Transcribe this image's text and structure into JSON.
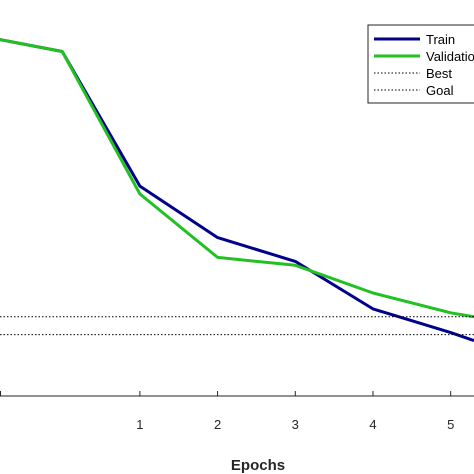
{
  "chart_data": {
    "type": "line",
    "xlabel": "Epochs",
    "ylabel": "",
    "title": "",
    "xlim": [
      -0.8,
      5.3
    ],
    "ylim": [
      0,
      1
    ],
    "x_ticks": [
      "1",
      "2",
      "3",
      "4",
      "5"
    ],
    "x_tick_values": [
      1,
      2,
      3,
      4,
      5
    ],
    "legend_position": "top-right",
    "grid": false,
    "series": [
      {
        "name": "Train",
        "style": "solid",
        "color": "#00008B",
        "x": [
          -0.8,
          0,
          1,
          2,
          3,
          4,
          5,
          5.3
        ],
        "y": [
          0.9,
          0.87,
          0.53,
          0.4,
          0.34,
          0.22,
          0.16,
          0.14
        ]
      },
      {
        "name": "Validation",
        "style": "solid",
        "color": "#22C022",
        "x": [
          -0.8,
          0,
          1,
          2,
          3,
          4,
          5,
          5.3
        ],
        "y": [
          0.9,
          0.87,
          0.51,
          0.35,
          0.33,
          0.26,
          0.21,
          0.2
        ]
      },
      {
        "name": "Best",
        "style": "dotted",
        "color": "#000000",
        "x": [
          -0.8,
          5.3
        ],
        "y": [
          0.2,
          0.2
        ]
      },
      {
        "name": "Goal",
        "style": "dotted",
        "color": "#000000",
        "x": [
          -0.8,
          5.3
        ],
        "y": [
          0.155,
          0.155
        ]
      }
    ],
    "legend": [
      "Train",
      "Validation",
      "Best",
      "Goal"
    ]
  }
}
